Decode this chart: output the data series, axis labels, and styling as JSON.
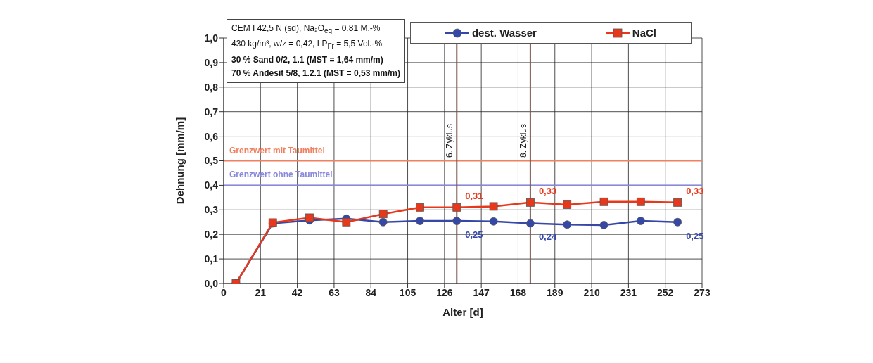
{
  "chart_data": {
    "type": "line",
    "x": [
      7,
      28,
      49,
      70,
      91,
      112,
      133,
      154,
      175,
      196,
      217,
      238,
      259
    ],
    "series": [
      {
        "name": "dest. Wasser",
        "color": "#3548a8",
        "marker": "circle",
        "values": [
          0,
          0.245,
          0.257,
          0.264,
          0.25,
          0.255,
          0.255,
          0.253,
          0.245,
          0.24,
          0.238,
          0.255,
          0.25
        ],
        "value_labels": [
          null,
          null,
          null,
          null,
          null,
          null,
          "0,25",
          null,
          "0,24",
          null,
          null,
          null,
          "0,25"
        ]
      },
      {
        "name": "NaCl",
        "color": "#e8381c",
        "marker": "square",
        "values": [
          0,
          0.248,
          0.268,
          0.25,
          0.283,
          0.31,
          0.31,
          0.314,
          0.33,
          0.321,
          0.333,
          0.333,
          0.33
        ],
        "value_labels": [
          null,
          null,
          null,
          null,
          null,
          null,
          "0,31",
          null,
          "0,33",
          null,
          null,
          null,
          "0,33"
        ]
      }
    ],
    "xlabel": "Alter [d]",
    "ylabel": "Dehnung [mm/m]",
    "xlim": [
      0,
      273
    ],
    "xticks": [
      0,
      21,
      42,
      63,
      84,
      105,
      126,
      147,
      168,
      189,
      210,
      231,
      252,
      273
    ],
    "ylim": [
      0,
      1
    ],
    "yticks": [
      {
        "value": 0,
        "label": "0,0"
      },
      {
        "value": 0.1,
        "label": "0,1"
      },
      {
        "value": 0.2,
        "label": "0,2"
      },
      {
        "value": 0.3,
        "label": "0,3"
      },
      {
        "value": 0.4,
        "label": "0,4"
      },
      {
        "value": 0.5,
        "label": "0,5"
      },
      {
        "value": 0.6,
        "label": "0,6"
      },
      {
        "value": 0.7,
        "label": "0,7"
      },
      {
        "value": 0.8,
        "label": "0,8"
      },
      {
        "value": 0.9,
        "label": "0,9"
      },
      {
        "value": 1,
        "label": "1,0"
      }
    ],
    "ref_lines": [
      {
        "axis": "y",
        "value": 0.5,
        "label": "Grenzwert mit Taumittel",
        "color": "#f08060"
      },
      {
        "axis": "y",
        "value": 0.4,
        "label": "Grenzwert ohne Taumittel",
        "color": "#8888dd"
      },
      {
        "axis": "x",
        "value": 133,
        "label": "6. Zyklus",
        "color": "#7a5a50"
      },
      {
        "axis": "x",
        "value": 175,
        "label": "8. Zyklus",
        "color": "#7a5a50"
      }
    ],
    "annotations": [
      "CEM I 42,5 N (sd), Na₂O$_{eq}$ = 0,81 M.-%",
      "430 kg/m³, w/z = 0,42, LP$_{Fr}$ = 5,5 Vol.-%",
      "30 % Sand 0/2, 1.1 (MST = 1,64 mm/m)",
      "70 % Andesit 5/8, 1.2.1 (MST = 0,53 mm/m)"
    ],
    "grid": true,
    "legend": "top right"
  }
}
